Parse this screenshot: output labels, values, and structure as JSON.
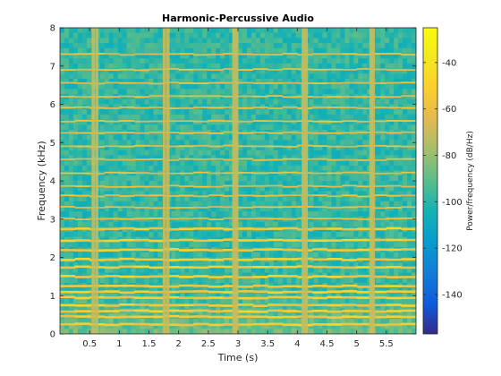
{
  "chart_data": {
    "type": "heatmap",
    "title": "Harmonic-Percussive Audio",
    "xlabel": "Time (s)",
    "ylabel": "Frequency (kHz)",
    "colorbar_label": "Power/frequency (dB/Hz)",
    "colormap": "parula",
    "xlim": [
      0,
      6.0
    ],
    "ylim": [
      0,
      8
    ],
    "x_ticks": [
      0.5,
      1,
      1.5,
      2,
      2.5,
      3,
      3.5,
      4,
      4.5,
      5,
      5.5
    ],
    "x_tick_labels": [
      "0.5",
      "1",
      "1.5",
      "2",
      "2.5",
      "3",
      "3.5",
      "4",
      "4.5",
      "5",
      "5.5"
    ],
    "y_ticks": [
      0,
      1,
      2,
      3,
      4,
      5,
      6,
      7,
      8
    ],
    "y_tick_labels": [
      "0",
      "1",
      "2",
      "3",
      "4",
      "5",
      "6",
      "7",
      "8"
    ],
    "clim": [
      -157,
      -25
    ],
    "colorbar_ticks": [
      -140,
      -120,
      -100,
      -80,
      -60,
      -40
    ],
    "colorbar_tick_labels": [
      "-140",
      "-120",
      "-100",
      "-80",
      "-60",
      "-40"
    ],
    "percussive_onsets_s": [
      0.56,
      0.62,
      1.76,
      1.82,
      2.93,
      2.98,
      4.1,
      4.15,
      5.24,
      5.28
    ],
    "harmonic_bands_khz": [
      0.25,
      0.45,
      0.6,
      0.75,
      0.95,
      1.1,
      1.25,
      1.5,
      1.75,
      1.95,
      2.2,
      2.45,
      2.75,
      3.0,
      3.3,
      3.6,
      3.85,
      4.2,
      4.55,
      4.9,
      5.25,
      5.55,
      5.9,
      6.2,
      6.55,
      6.9,
      7.3
    ],
    "background_level_db": -95,
    "band_level_db": -62,
    "onset_level_db": -70
  }
}
